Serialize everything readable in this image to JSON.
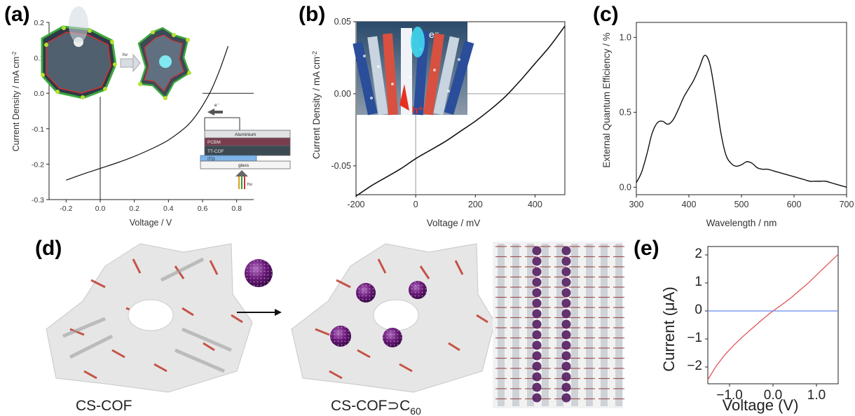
{
  "panels": {
    "a": {
      "label": "(a)"
    },
    "b": {
      "label": "(b)"
    },
    "c": {
      "label": "(c)"
    },
    "d": {
      "label": "(d)"
    },
    "e": {
      "label": "(e)"
    }
  },
  "device_stack": {
    "layers": [
      "Aluminium",
      "PCBM",
      "TT-COF",
      "ITO",
      "glass"
    ],
    "electron_label": "e⁻",
    "light_label": "hν"
  },
  "inset_a": {
    "arrow_label": "hν"
  },
  "inset_b": {
    "electron_label": "e⁻",
    "hole_label": "h⁺"
  },
  "structures": {
    "cs_cof_caption": "CS-COF",
    "cs_cof_c60_caption_main": "CS-COF⊃C",
    "cs_cof_c60_caption_sub": "60"
  },
  "colors": {
    "curve": "#111111",
    "axis": "#222222",
    "zero_line": "#999999",
    "e_curve": "#e05555",
    "e_zero_line": "#6688ee",
    "c60": "#6a1a78",
    "cof_bond": "#c0392b"
  },
  "chart_data": [
    {
      "panel": "a",
      "type": "line",
      "xlabel": "Voltage / V",
      "ylabel": "Current Density / mA cm",
      "ylabel_sup": "-2",
      "xlim": [
        -0.3,
        0.9
      ],
      "ylim": [
        -0.3,
        0.2
      ],
      "xticks": [
        "-0.2",
        "0.0",
        "0.2",
        "0.4",
        "0.6",
        "0.8"
      ],
      "xtick_values": [
        -0.2,
        0.0,
        0.2,
        0.4,
        0.6,
        0.8
      ],
      "yticks": [
        "-0.3",
        "-0.2",
        "-0.1",
        "0.0",
        "0.1",
        "0.2"
      ],
      "ytick_values": [
        -0.3,
        -0.2,
        -0.1,
        0.0,
        0.1,
        0.2
      ],
      "series": [
        {
          "x": [
            -0.2,
            -0.1,
            0.0,
            0.1,
            0.2,
            0.3,
            0.4,
            0.5,
            0.55,
            0.6,
            0.65,
            0.7,
            0.75
          ],
          "y": [
            -0.245,
            -0.228,
            -0.212,
            -0.196,
            -0.178,
            -0.157,
            -0.132,
            -0.096,
            -0.07,
            -0.035,
            0.008,
            0.065,
            0.133
          ]
        }
      ]
    },
    {
      "panel": "b",
      "type": "line",
      "xlabel": "Voltage / mV",
      "ylabel": "Current Density / mA cm",
      "ylabel_sup": "-2",
      "xlim": [
        -200,
        500
      ],
      "ylim": [
        -0.07,
        0.05
      ],
      "xticks": [
        "-200",
        "0",
        "200",
        "400"
      ],
      "xtick_values": [
        -200,
        0,
        200,
        400
      ],
      "yticks": [
        "-0.05",
        "0.00",
        "0.05"
      ],
      "ytick_values": [
        -0.05,
        0.0,
        0.05
      ],
      "series": [
        {
          "x": [
            -200,
            -150,
            -100,
            -50,
            0,
            50,
            100,
            150,
            200,
            250,
            300,
            350,
            400,
            450,
            500
          ],
          "y": [
            -0.071,
            -0.064,
            -0.058,
            -0.052,
            -0.045,
            -0.039,
            -0.033,
            -0.026,
            -0.019,
            -0.011,
            -0.002,
            0.009,
            0.021,
            0.033,
            0.047
          ]
        }
      ]
    },
    {
      "panel": "c",
      "type": "line",
      "xlabel": "Wavelength / nm",
      "ylabel": "External Quantum Efficiency / %",
      "xlim": [
        300,
        700
      ],
      "ylim": [
        -0.05,
        1.1
      ],
      "xticks": [
        "300",
        "400",
        "500",
        "600",
        "700"
      ],
      "xtick_values": [
        300,
        400,
        500,
        600,
        700
      ],
      "yticks": [
        "0.0",
        "0.5",
        "1.0"
      ],
      "ytick_values": [
        0.0,
        0.5,
        1.0
      ],
      "series": [
        {
          "x": [
            300,
            310,
            320,
            330,
            340,
            350,
            360,
            370,
            380,
            390,
            400,
            410,
            420,
            430,
            440,
            450,
            460,
            470,
            480,
            490,
            500,
            510,
            520,
            530,
            540,
            550,
            560,
            570,
            580,
            590,
            600,
            610,
            620,
            630,
            640,
            650,
            660,
            670,
            680,
            690,
            700
          ],
          "y": [
            0.03,
            0.1,
            0.22,
            0.36,
            0.43,
            0.44,
            0.42,
            0.45,
            0.52,
            0.6,
            0.66,
            0.72,
            0.8,
            0.88,
            0.82,
            0.62,
            0.38,
            0.22,
            0.16,
            0.14,
            0.15,
            0.17,
            0.16,
            0.13,
            0.12,
            0.12,
            0.11,
            0.1,
            0.09,
            0.08,
            0.07,
            0.06,
            0.05,
            0.04,
            0.04,
            0.04,
            0.04,
            0.03,
            0.02,
            0.01,
            0.0
          ]
        }
      ]
    },
    {
      "panel": "e",
      "type": "line",
      "xlabel": "Voltage (V)",
      "ylabel": "Current (μA)",
      "xlim": [
        -1.5,
        1.5
      ],
      "ylim": [
        -2.6,
        2.3
      ],
      "xticks": [
        "−1.0",
        "0.0",
        "1.0"
      ],
      "xtick_values": [
        -1.0,
        0.0,
        1.0
      ],
      "yticks": [
        "−2",
        "−1",
        "0",
        "1",
        "2"
      ],
      "ytick_values": [
        -2,
        -1,
        0,
        1,
        2
      ],
      "series": [
        {
          "x": [
            -1.5,
            -1.3,
            -1.1,
            -0.9,
            -0.7,
            -0.5,
            -0.3,
            -0.1,
            0.0,
            0.2,
            0.4,
            0.6,
            0.8,
            1.0,
            1.2,
            1.5
          ],
          "y": [
            -2.45,
            -1.95,
            -1.55,
            -1.22,
            -0.92,
            -0.65,
            -0.38,
            -0.12,
            0.0,
            0.22,
            0.45,
            0.72,
            0.98,
            1.28,
            1.58,
            2.02
          ]
        },
        {
          "x": [
            -1.5,
            1.5
          ],
          "y": [
            0,
            0
          ]
        }
      ]
    }
  ]
}
